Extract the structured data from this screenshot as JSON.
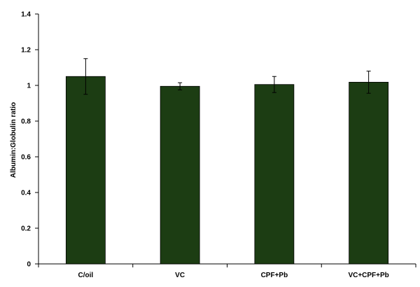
{
  "chart_data": {
    "type": "bar",
    "title": "",
    "xlabel": "",
    "ylabel": "Albumin:Globulin ratio",
    "categories": [
      "C/oil",
      "VC",
      "CPF+Pb",
      "VC+CPF+Pb"
    ],
    "values": [
      1.05,
      0.995,
      1.005,
      1.018
    ],
    "errors": [
      0.1,
      0.02,
      0.045,
      0.062
    ],
    "ylim": [
      0,
      1.4
    ],
    "yticks": [
      0,
      0.2,
      0.4,
      0.6,
      0.8,
      1,
      1.2,
      1.4
    ],
    "ytick_labels": [
      "0",
      "0.2",
      "0.4",
      "0.6",
      "0.8",
      "1",
      "1.2",
      "1.4"
    ],
    "grid": false,
    "legend": "none",
    "bar_color": "#1c3d13",
    "bar_edge_color": "#000000",
    "error_bar_color": "#000000"
  }
}
